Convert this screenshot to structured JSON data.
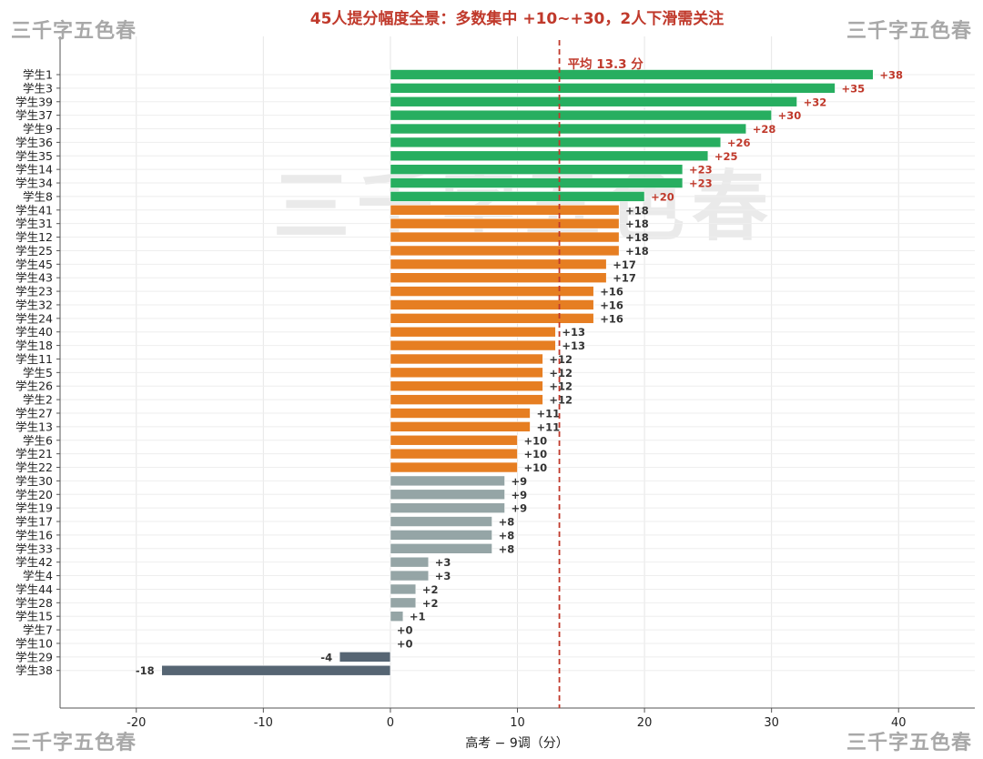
{
  "watermark": "三千字五色春",
  "colors": {
    "green": "#27ae60",
    "orange": "#e67e22",
    "gray": "#95a5a6",
    "dark": "#566573",
    "red": "#c0392b",
    "label_dark": "#333333"
  },
  "chart_data": {
    "type": "bar",
    "orientation": "horizontal",
    "title": "45人提分幅度全景：多数集中 +10~+30，2人下滑需关注",
    "xlabel": "高考 − 9调（分）",
    "ylabel": "",
    "xlim": [
      -26,
      46
    ],
    "xticks": [
      -20,
      -10,
      0,
      10,
      20,
      30,
      40
    ],
    "grid": true,
    "mean_line": {
      "value": 13.3,
      "label": "平均 13.3 分"
    },
    "categories": [
      "学生1",
      "学生3",
      "学生39",
      "学生37",
      "学生9",
      "学生36",
      "学生35",
      "学生14",
      "学生34",
      "学生8",
      "学生41",
      "学生31",
      "学生12",
      "学生25",
      "学生45",
      "学生43",
      "学生23",
      "学生32",
      "学生24",
      "学生40",
      "学生18",
      "学生11",
      "学生5",
      "学生26",
      "学生2",
      "学生27",
      "学生13",
      "学生6",
      "学生21",
      "学生22",
      "学生30",
      "学生20",
      "学生19",
      "学生17",
      "学生16",
      "学生33",
      "学生42",
      "学生4",
      "学生44",
      "学生28",
      "学生15",
      "学生7",
      "学生10",
      "学生29",
      "学生38"
    ],
    "values": [
      38,
      35,
      32,
      30,
      28,
      26,
      25,
      23,
      23,
      20,
      18,
      18,
      18,
      18,
      17,
      17,
      16,
      16,
      16,
      13,
      13,
      12,
      12,
      12,
      12,
      11,
      11,
      10,
      10,
      10,
      9,
      9,
      9,
      8,
      8,
      8,
      3,
      3,
      2,
      2,
      1,
      0,
      0,
      -4,
      -18
    ],
    "value_labels": [
      "+38",
      "+35",
      "+32",
      "+30",
      "+28",
      "+26",
      "+25",
      "+23",
      "+23",
      "+20",
      "+18",
      "+18",
      "+18",
      "+18",
      "+17",
      "+17",
      "+16",
      "+16",
      "+16",
      "+13",
      "+13",
      "+12",
      "+12",
      "+12",
      "+12",
      "+11",
      "+11",
      "+10",
      "+10",
      "+10",
      "+9",
      "+9",
      "+9",
      "+8",
      "+8",
      "+8",
      "+3",
      "+3",
      "+2",
      "+2",
      "+1",
      "+0",
      "+0",
      "-4",
      "-18"
    ]
  }
}
